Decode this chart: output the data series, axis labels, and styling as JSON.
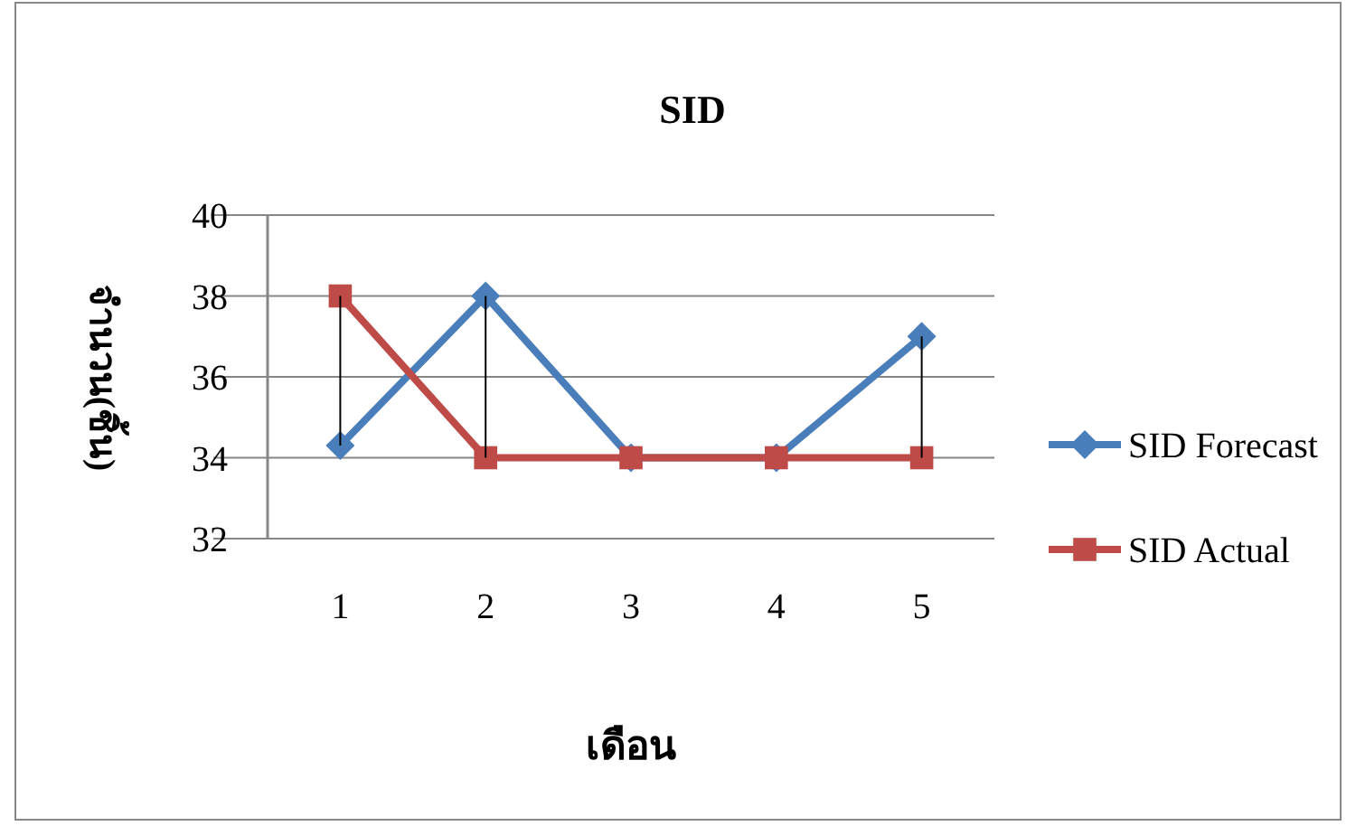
{
  "chart_data": {
    "type": "line",
    "title": "SID",
    "xlabel": "เดือน",
    "ylabel": "จำนวน(ชิ้น)",
    "categories": [
      "1",
      "2",
      "3",
      "4",
      "5"
    ],
    "series": [
      {
        "name": "SID Forecast",
        "color": "#4a7ebb",
        "marker": "diamond",
        "values": [
          34.3,
          38,
          34,
          34,
          37
        ],
        "errors": [
          [
            34.3,
            38
          ],
          [
            34,
            38
          ],
          null,
          null,
          [
            34,
            37
          ]
        ]
      },
      {
        "name": "SID Actual",
        "color": "#be4b48",
        "marker": "square",
        "values": [
          38,
          34,
          34,
          34,
          34
        ]
      }
    ],
    "ylim": [
      32,
      40
    ],
    "yticks": [
      32,
      34,
      36,
      38,
      40
    ],
    "grid": "y",
    "legend": "right"
  }
}
